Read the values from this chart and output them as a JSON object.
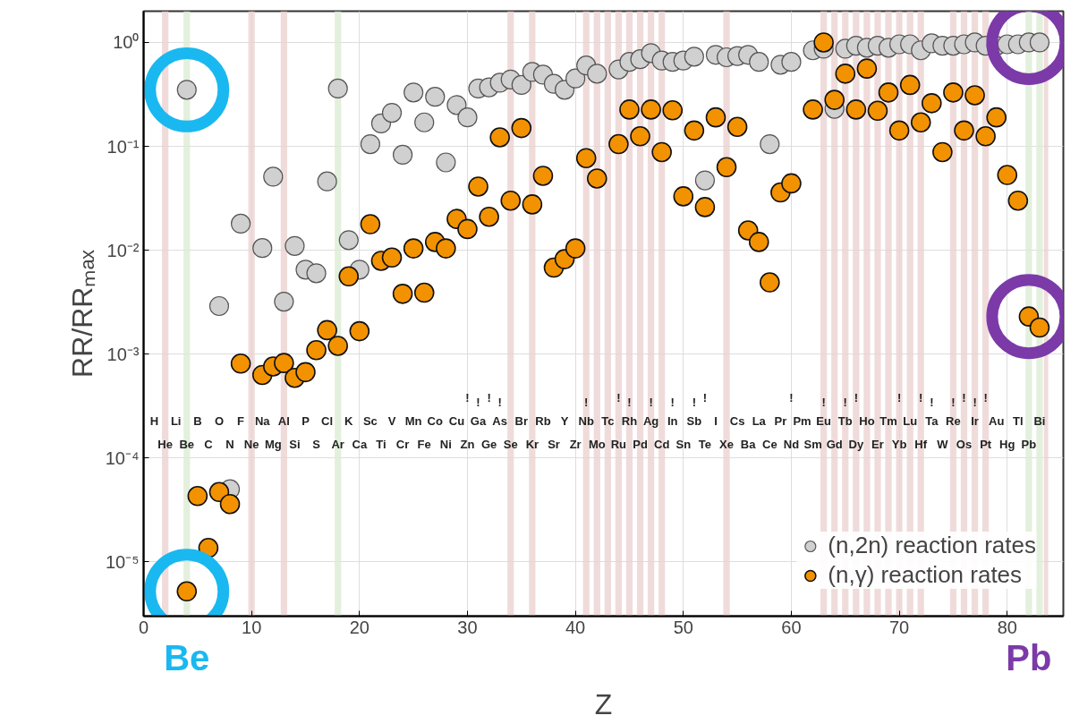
{
  "chart_data": {
    "type": "scatter",
    "xlabel": "Z",
    "ylabel": "RR/RRₘₐₓ",
    "xlim": [
      0,
      85.2
    ],
    "xticks": [
      0,
      10,
      20,
      30,
      40,
      50,
      60,
      70,
      80
    ],
    "ylim": [
      3e-06,
      2
    ],
    "log": "y",
    "yticks": [
      {
        "value": 1e-05,
        "label": "10⁻⁵"
      },
      {
        "value": 0.0001,
        "label": "10⁻⁴"
      },
      {
        "value": 0.001,
        "label": "10⁻³"
      },
      {
        "value": 0.01,
        "label": "10⁻²"
      },
      {
        "value": 0.1,
        "label": "10⁻¹"
      },
      {
        "value": 1,
        "label": "10⁰"
      }
    ],
    "grid": true,
    "legend": "bottom right",
    "marker": "circle",
    "series": [
      {
        "name": "(n,2n) reaction rates",
        "color": "#d0d0d0",
        "x": [
          4,
          7,
          8,
          9,
          11,
          12,
          13,
          14,
          15,
          16,
          17,
          18,
          19,
          20,
          21,
          22,
          23,
          24,
          25,
          26,
          27,
          28,
          29,
          30,
          31,
          32,
          33,
          34,
          35,
          36,
          37,
          38,
          39,
          40,
          41,
          42,
          44,
          45,
          46,
          47,
          48,
          49,
          50,
          51,
          52,
          53,
          54,
          55,
          56,
          57,
          58,
          59,
          60,
          62,
          63,
          64,
          65,
          66,
          67,
          68,
          69,
          70,
          71,
          72,
          73,
          74,
          75,
          76,
          77,
          78,
          79,
          80,
          81,
          82,
          83
        ],
        "values": [
          0.35,
          0.0029,
          5e-05,
          0.018,
          0.0105,
          0.051,
          0.0032,
          0.011,
          0.0065,
          0.006,
          0.046,
          0.36,
          0.0125,
          0.0065,
          0.105,
          0.166,
          0.21,
          0.083,
          0.33,
          0.17,
          0.3,
          0.07,
          0.25,
          0.19,
          0.36,
          0.37,
          0.41,
          0.44,
          0.39,
          0.52,
          0.49,
          0.4,
          0.35,
          0.45,
          0.6,
          0.5,
          0.55,
          0.65,
          0.69,
          0.79,
          0.67,
          0.65,
          0.67,
          0.73,
          0.047,
          0.76,
          0.72,
          0.74,
          0.76,
          0.65,
          0.105,
          0.61,
          0.65,
          0.84,
          0.87,
          0.23,
          0.87,
          0.93,
          0.89,
          0.93,
          0.89,
          0.96,
          0.96,
          0.84,
          0.98,
          0.93,
          0.93,
          0.96,
          1.0,
          0.93,
          0.93,
          0.96,
          0.96,
          1.0,
          1.0
        ]
      },
      {
        "name": "(n,γ) reaction rates",
        "color": "#f39200",
        "x": [
          4,
          5,
          6,
          7,
          8,
          9,
          11,
          12,
          13,
          14,
          15,
          16,
          17,
          18,
          19,
          20,
          21,
          22,
          23,
          24,
          25,
          26,
          27,
          28,
          29,
          30,
          31,
          32,
          33,
          34,
          35,
          36,
          37,
          38,
          39,
          40,
          41,
          42,
          44,
          45,
          46,
          47,
          48,
          49,
          50,
          51,
          52,
          53,
          54,
          55,
          56,
          57,
          58,
          59,
          60,
          62,
          63,
          64,
          65,
          66,
          67,
          68,
          69,
          70,
          71,
          72,
          73,
          74,
          75,
          76,
          77,
          78,
          79,
          80,
          81,
          82,
          83
        ],
        "values": [
          5.2e-06,
          4.3e-05,
          1.36e-05,
          4.7e-05,
          3.6e-05,
          0.00081,
          0.00063,
          0.00076,
          0.00082,
          0.00059,
          0.00067,
          0.00109,
          0.0017,
          0.0012,
          0.0056,
          0.00166,
          0.0178,
          0.0079,
          0.0085,
          0.0038,
          0.0104,
          0.0039,
          0.012,
          0.0104,
          0.02,
          0.016,
          0.041,
          0.021,
          0.122,
          0.03,
          0.15,
          0.0276,
          0.052,
          0.0068,
          0.0082,
          0.0104,
          0.077,
          0.049,
          0.105,
          0.226,
          0.125,
          0.226,
          0.088,
          0.222,
          0.033,
          0.142,
          0.026,
          0.19,
          0.063,
          0.154,
          0.0155,
          0.012,
          0.0049,
          0.036,
          0.044,
          0.226,
          1.0,
          0.28,
          0.5,
          0.226,
          0.56,
          0.22,
          0.33,
          0.142,
          0.39,
          0.17,
          0.26,
          0.088,
          0.33,
          0.142,
          0.31,
          0.125,
          0.19,
          0.053,
          0.03,
          0.0023,
          0.0018
        ]
      }
    ],
    "bands": [
      {
        "axis": "x",
        "from": 1.7,
        "to": 2.3,
        "color": "#ecd2d2"
      },
      {
        "axis": "x",
        "from": 3.7,
        "to": 4.3,
        "color": "#dcecd4",
        "label": "Be"
      },
      {
        "axis": "x",
        "from": 9.7,
        "to": 10.3,
        "color": "#ecd2d2"
      },
      {
        "axis": "x",
        "from": 12.7,
        "to": 13.3,
        "color": "#ecd2d2"
      },
      {
        "axis": "x",
        "from": 17.7,
        "to": 18.3,
        "color": "#dcecd4"
      },
      {
        "axis": "x",
        "from": 33.7,
        "to": 34.3,
        "color": "#ecd2d2"
      },
      {
        "axis": "x",
        "from": 35.7,
        "to": 36.3,
        "color": "#ecd2d2"
      },
      {
        "axis": "x",
        "from": 40.7,
        "to": 41.3,
        "color": "#ecd2d2"
      },
      {
        "axis": "x",
        "from": 41.7,
        "to": 42.3,
        "color": "#ecd2d2"
      },
      {
        "axis": "x",
        "from": 42.7,
        "to": 43.3,
        "color": "#ecd2d2"
      },
      {
        "axis": "x",
        "from": 43.7,
        "to": 44.3,
        "color": "#ecd2d2"
      },
      {
        "axis": "x",
        "from": 44.7,
        "to": 45.3,
        "color": "#ecd2d2"
      },
      {
        "axis": "x",
        "from": 45.7,
        "to": 46.3,
        "color": "#ecd2d2"
      },
      {
        "axis": "x",
        "from": 46.7,
        "to": 47.3,
        "color": "#ecd2d2"
      },
      {
        "axis": "x",
        "from": 47.7,
        "to": 48.3,
        "color": "#ecd2d2"
      },
      {
        "axis": "x",
        "from": 53.7,
        "to": 54.3,
        "color": "#ecd2d2"
      },
      {
        "axis": "x",
        "from": 62.7,
        "to": 63.3,
        "color": "#ecd2d2"
      },
      {
        "axis": "x",
        "from": 63.7,
        "to": 64.3,
        "color": "#ecd2d2"
      },
      {
        "axis": "x",
        "from": 64.7,
        "to": 65.3,
        "color": "#ecd2d2"
      },
      {
        "axis": "x",
        "from": 65.7,
        "to": 66.3,
        "color": "#ecd2d2"
      },
      {
        "axis": "x",
        "from": 66.7,
        "to": 67.3,
        "color": "#ecd2d2"
      },
      {
        "axis": "x",
        "from": 67.7,
        "to": 68.3,
        "color": "#ecd2d2"
      },
      {
        "axis": "x",
        "from": 68.7,
        "to": 69.3,
        "color": "#ecd2d2"
      },
      {
        "axis": "x",
        "from": 69.7,
        "to": 70.3,
        "color": "#ecd2d2"
      },
      {
        "axis": "x",
        "from": 70.7,
        "to": 71.3,
        "color": "#ecd2d2"
      },
      {
        "axis": "x",
        "from": 71.7,
        "to": 72.3,
        "color": "#ecd2d2"
      },
      {
        "axis": "x",
        "from": 74.7,
        "to": 75.3,
        "color": "#ecd2d2"
      },
      {
        "axis": "x",
        "from": 75.7,
        "to": 76.3,
        "color": "#ecd2d2"
      },
      {
        "axis": "x",
        "from": 76.7,
        "to": 77.3,
        "color": "#ecd2d2"
      },
      {
        "axis": "x",
        "from": 77.7,
        "to": 78.3,
        "color": "#ecd2d2"
      },
      {
        "axis": "x",
        "from": 81.7,
        "to": 82.3,
        "color": "#dcecd4",
        "label": "Pb"
      },
      {
        "axis": "x",
        "from": 82.7,
        "to": 83.3,
        "color": "#dcecd4"
      },
      {
        "axis": "x",
        "from": 83.4,
        "to": 83.8,
        "color": "#ecd2d2"
      }
    ],
    "annotations": [
      "H",
      "He",
      "Li",
      "Be",
      "B",
      "C",
      "O",
      "N",
      "F",
      "Ne",
      "Na",
      "Mg",
      "Al",
      "Si",
      "P",
      "S",
      "Cl",
      "Ar",
      "K",
      "Ca",
      "Sc",
      "Ti",
      "V",
      "Cr",
      "Mn",
      "Fe",
      "Co",
      "Ni",
      "Cu",
      "!\nZn",
      "!\nGa",
      "!\nGe",
      "!\nAs",
      "Se",
      "Br",
      "Kr",
      "Rb",
      "Sr",
      "Y",
      "Zr",
      "!\nNb",
      "Mo",
      "Tc",
      "!\nRu",
      "!\nRh",
      "Pd",
      "!\nAg",
      "Cd",
      "!\nIn",
      "Sn",
      "!\nSb",
      "!\nTe",
      "I",
      "Xe",
      "Cs",
      "Ba",
      "La",
      "Ce",
      "Pr",
      "!\nNd",
      "Pm",
      "Sm",
      "!\nEu",
      "Gd",
      "!\nTb",
      "!\nDy",
      "Ho",
      "Er",
      "Tm",
      "!\nYb",
      "Lu",
      "!\nHf",
      "!\nTa",
      "W",
      "!\nRe",
      "!\nOs",
      "!\nIr",
      "!\nPt",
      "Au",
      "Hg",
      "Tl",
      "Pb",
      "Bi"
    ]
  }
}
